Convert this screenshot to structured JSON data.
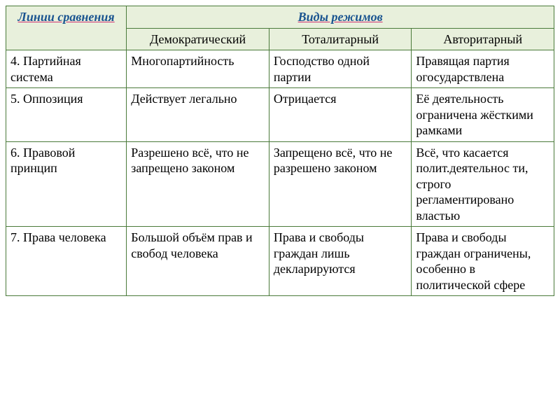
{
  "table": {
    "type": "table",
    "colors": {
      "border": "#4a7a3a",
      "header_bg": "#e8f0dc",
      "header_text": "#1a5490",
      "underline": "#d03070",
      "body_text": "#000000",
      "body_bg": "#ffffff"
    },
    "font": {
      "family": "Times New Roman",
      "header_fontsize": 18,
      "body_fontsize": 18,
      "header_style": "italic bold underline"
    },
    "col_widths": [
      "22%",
      "26%",
      "26%",
      "26%"
    ],
    "header": {
      "lines_label": "Линии сравнения",
      "regimes_label": "Виды режимов",
      "subheaders": [
        "Демократический",
        "Тоталитарный",
        "Авторитарный"
      ]
    },
    "rows": [
      {
        "label": "4. Партийная система",
        "cells": [
          "Многопартийность",
          "Господство одной партии",
          "Правящая партия огосударствлена"
        ]
      },
      {
        "label": "5. Оппозиция",
        "cells": [
          "Действует легально",
          "Отрицается",
          "Её деятельность ограничена жёсткими рамками"
        ]
      },
      {
        "label": "6. Правовой принцип",
        "cells": [
          "Разрешено всё, что не запрещено законом",
          "Запрещено всё, что не разрешено законом",
          "Всё, что касается полит.деятельнос ти, строго регламентировано властью"
        ]
      },
      {
        "label": "7. Права человека",
        "cells": [
          "Большой объём прав и свобод человека",
          "Права и свободы граждан лишь декларируются",
          "Права и свободы граждан ограничены, особенно в политической сфере"
        ]
      }
    ]
  }
}
